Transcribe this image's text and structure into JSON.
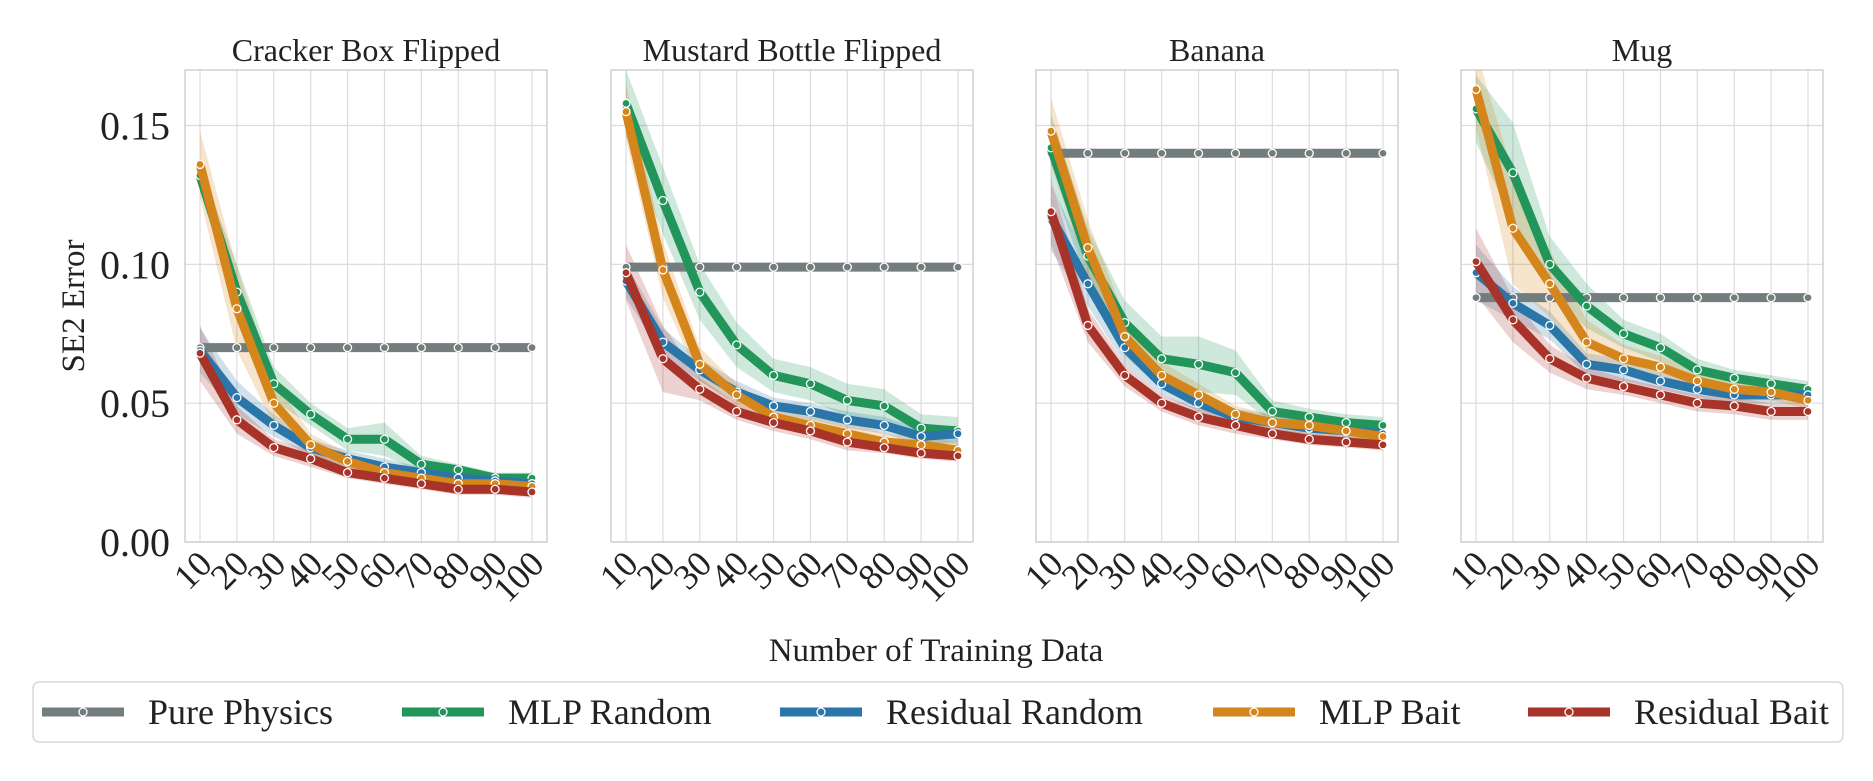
{
  "chart_data": {
    "type": "line",
    "ylabel": "SE2 Error",
    "xlabel": "Number of Training Data",
    "ylim": [
      0.0,
      0.17
    ],
    "yticks": [
      0.0,
      0.05,
      0.1,
      0.15
    ],
    "ytick_labels": [
      "0.00",
      "0.05",
      "0.10",
      "0.15"
    ],
    "x": [
      10,
      20,
      30,
      40,
      50,
      60,
      70,
      80,
      90,
      100
    ],
    "xtick_labels": [
      "10",
      "20",
      "30",
      "40",
      "50",
      "60",
      "70",
      "80",
      "90",
      "100"
    ],
    "grid": true,
    "legend_position": "bottom",
    "legend": [
      {
        "name": "Pure Physics",
        "color": "#737d7d"
      },
      {
        "name": "MLP Random",
        "color": "#22955b"
      },
      {
        "name": "Residual Random",
        "color": "#2b76a8"
      },
      {
        "name": "MLP Bait",
        "color": "#d4861c"
      },
      {
        "name": "Residual Bait",
        "color": "#a83329"
      }
    ],
    "panels": [
      {
        "title": "Cracker Box Flipped",
        "series": [
          {
            "name": "Pure Physics",
            "color": "#737d7d",
            "values": [
              0.07,
              0.07,
              0.07,
              0.07,
              0.07,
              0.07,
              0.07,
              0.07,
              0.07,
              0.07
            ],
            "band": [
              0,
              0,
              0,
              0,
              0,
              0,
              0,
              0,
              0,
              0
            ]
          },
          {
            "name": "MLP Random",
            "color": "#22955b",
            "values": [
              0.132,
              0.09,
              0.057,
              0.046,
              0.037,
              0.037,
              0.028,
              0.026,
              0.023,
              0.023
            ],
            "band": [
              0.004,
              0.01,
              0.006,
              0.004,
              0.004,
              0.006,
              0.003,
              0.002,
              0.002,
              0.002
            ]
          },
          {
            "name": "Residual Random",
            "color": "#2b76a8",
            "values": [
              0.069,
              0.052,
              0.042,
              0.034,
              0.03,
              0.027,
              0.025,
              0.023,
              0.022,
              0.021
            ],
            "band": [
              0.008,
              0.006,
              0.004,
              0.003,
              0.003,
              0.003,
              0.002,
              0.002,
              0.002,
              0.002
            ]
          },
          {
            "name": "MLP Bait",
            "color": "#d4861c",
            "values": [
              0.136,
              0.084,
              0.05,
              0.035,
              0.029,
              0.025,
              0.023,
              0.021,
              0.021,
              0.02
            ],
            "band": [
              0.012,
              0.015,
              0.008,
              0.004,
              0.003,
              0.002,
              0.002,
              0.002,
              0.002,
              0.002
            ]
          },
          {
            "name": "Residual Bait",
            "color": "#a83329",
            "values": [
              0.068,
              0.044,
              0.034,
              0.03,
              0.025,
              0.023,
              0.021,
              0.019,
              0.019,
              0.018
            ],
            "band": [
              0.01,
              0.005,
              0.003,
              0.003,
              0.002,
              0.002,
              0.002,
              0.002,
              0.002,
              0.002
            ]
          }
        ]
      },
      {
        "title": "Mustard Bottle Flipped",
        "series": [
          {
            "name": "Pure Physics",
            "color": "#737d7d",
            "values": [
              0.099,
              0.099,
              0.099,
              0.099,
              0.099,
              0.099,
              0.099,
              0.099,
              0.099,
              0.099
            ],
            "band": [
              0,
              0,
              0,
              0,
              0,
              0,
              0,
              0,
              0,
              0
            ]
          },
          {
            "name": "MLP Random",
            "color": "#22955b",
            "values": [
              0.158,
              0.123,
              0.09,
              0.071,
              0.06,
              0.057,
              0.051,
              0.049,
              0.041,
              0.04
            ],
            "band": [
              0.012,
              0.012,
              0.01,
              0.008,
              0.006,
              0.006,
              0.006,
              0.006,
              0.005,
              0.005
            ]
          },
          {
            "name": "Residual Random",
            "color": "#2b76a8",
            "values": [
              0.094,
              0.072,
              0.062,
              0.054,
              0.049,
              0.047,
              0.044,
              0.042,
              0.038,
              0.039
            ],
            "band": [
              0.006,
              0.005,
              0.004,
              0.004,
              0.003,
              0.003,
              0.003,
              0.003,
              0.003,
              0.003
            ]
          },
          {
            "name": "MLP Bait",
            "color": "#d4861c",
            "values": [
              0.155,
              0.098,
              0.064,
              0.053,
              0.045,
              0.042,
              0.039,
              0.036,
              0.035,
              0.033
            ],
            "band": [
              0.01,
              0.01,
              0.006,
              0.004,
              0.003,
              0.003,
              0.005,
              0.003,
              0.003,
              0.003
            ]
          },
          {
            "name": "Residual Bait",
            "color": "#a83329",
            "values": [
              0.097,
              0.066,
              0.055,
              0.047,
              0.043,
              0.04,
              0.036,
              0.034,
              0.032,
              0.031
            ],
            "band": [
              0.01,
              0.012,
              0.004,
              0.003,
              0.003,
              0.003,
              0.003,
              0.002,
              0.002,
              0.002
            ]
          }
        ]
      },
      {
        "title": "Banana",
        "series": [
          {
            "name": "Pure Physics",
            "color": "#737d7d",
            "values": [
              0.14,
              0.14,
              0.14,
              0.14,
              0.14,
              0.14,
              0.14,
              0.14,
              0.14,
              0.14
            ],
            "band": [
              0,
              0,
              0,
              0,
              0,
              0,
              0,
              0,
              0,
              0
            ]
          },
          {
            "name": "MLP Random",
            "color": "#22955b",
            "values": [
              0.142,
              0.103,
              0.079,
              0.066,
              0.064,
              0.061,
              0.047,
              0.045,
              0.043,
              0.042
            ],
            "band": [
              0.012,
              0.01,
              0.008,
              0.008,
              0.01,
              0.008,
              0.004,
              0.003,
              0.003,
              0.003
            ]
          },
          {
            "name": "Residual Random",
            "color": "#2b76a8",
            "values": [
              0.117,
              0.093,
              0.07,
              0.057,
              0.05,
              0.045,
              0.043,
              0.041,
              0.04,
              0.039
            ],
            "band": [
              0.012,
              0.008,
              0.006,
              0.004,
              0.003,
              0.003,
              0.003,
              0.003,
              0.003,
              0.003
            ]
          },
          {
            "name": "MLP Bait",
            "color": "#d4861c",
            "values": [
              0.148,
              0.106,
              0.074,
              0.06,
              0.053,
              0.046,
              0.043,
              0.042,
              0.04,
              0.038
            ],
            "band": [
              0.012,
              0.01,
              0.007,
              0.005,
              0.004,
              0.003,
              0.003,
              0.003,
              0.003,
              0.003
            ]
          },
          {
            "name": "Residual Bait",
            "color": "#a83329",
            "values": [
              0.119,
              0.078,
              0.06,
              0.05,
              0.045,
              0.042,
              0.039,
              0.037,
              0.036,
              0.035
            ],
            "band": [
              0.012,
              0.006,
              0.004,
              0.003,
              0.003,
              0.003,
              0.002,
              0.002,
              0.002,
              0.002
            ]
          }
        ]
      },
      {
        "title": "Mug",
        "series": [
          {
            "name": "Pure Physics",
            "color": "#737d7d",
            "values": [
              0.088,
              0.088,
              0.088,
              0.088,
              0.088,
              0.088,
              0.088,
              0.088,
              0.088,
              0.088
            ],
            "band": [
              0,
              0,
              0,
              0,
              0,
              0,
              0,
              0,
              0,
              0
            ]
          },
          {
            "name": "MLP Random",
            "color": "#22955b",
            "values": [
              0.156,
              0.133,
              0.1,
              0.085,
              0.075,
              0.07,
              0.062,
              0.059,
              0.057,
              0.055
            ],
            "band": [
              0.012,
              0.018,
              0.01,
              0.008,
              0.005,
              0.005,
              0.004,
              0.003,
              0.003,
              0.003
            ]
          },
          {
            "name": "Residual Random",
            "color": "#2b76a8",
            "values": [
              0.097,
              0.086,
              0.078,
              0.064,
              0.062,
              0.058,
              0.055,
              0.053,
              0.053,
              0.053
            ],
            "band": [
              0.01,
              0.006,
              0.005,
              0.004,
              0.004,
              0.003,
              0.003,
              0.003,
              0.003,
              0.003
            ]
          },
          {
            "name": "MLP Bait",
            "color": "#d4861c",
            "values": [
              0.163,
              0.113,
              0.093,
              0.072,
              0.066,
              0.063,
              0.058,
              0.055,
              0.054,
              0.051
            ],
            "band": [
              0.014,
              0.02,
              0.012,
              0.008,
              0.005,
              0.004,
              0.004,
              0.004,
              0.003,
              0.003
            ]
          },
          {
            "name": "Residual Bait",
            "color": "#a83329",
            "values": [
              0.101,
              0.08,
              0.066,
              0.059,
              0.056,
              0.053,
              0.05,
              0.049,
              0.047,
              0.047
            ],
            "band": [
              0.012,
              0.008,
              0.005,
              0.004,
              0.003,
              0.003,
              0.003,
              0.003,
              0.003,
              0.003
            ]
          }
        ]
      }
    ]
  }
}
